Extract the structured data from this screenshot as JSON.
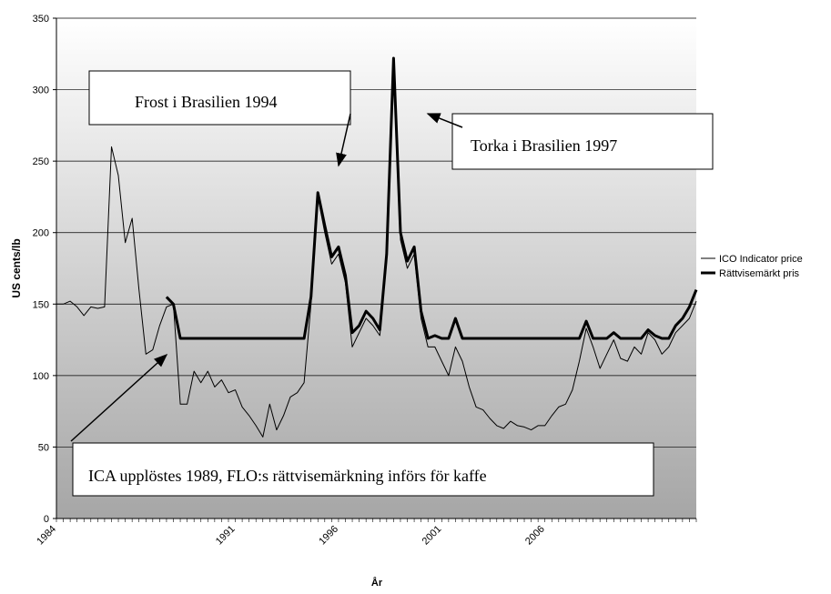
{
  "chart_data": {
    "type": "line",
    "ylabel": "US cents/lb",
    "xlabel": "År",
    "categories": [
      "1984",
      null,
      null,
      null,
      null,
      null,
      null,
      null,
      null,
      null,
      null,
      null,
      null,
      null,
      null,
      null,
      null,
      null,
      null,
      null,
      null,
      null,
      null,
      null,
      null,
      null,
      "1991",
      null,
      null,
      null,
      null,
      null,
      null,
      null,
      null,
      null,
      null,
      null,
      null,
      null,
      null,
      "1996",
      null,
      null,
      null,
      null,
      null,
      null,
      null,
      null,
      null,
      null,
      null,
      null,
      null,
      null,
      "2001",
      null,
      null,
      null,
      null,
      null,
      null,
      null,
      null,
      null,
      null,
      null,
      null,
      null,
      null,
      "2006",
      null,
      null,
      null,
      null,
      null,
      null,
      null,
      null,
      null,
      null,
      null,
      null,
      null,
      null,
      null,
      null,
      null,
      null,
      null,
      null,
      null,
      null
    ],
    "series": [
      {
        "name": "ICO Indicator price",
        "color": "#000000",
        "width": 1,
        "values": [
          150,
          150,
          152,
          148,
          142,
          148,
          147,
          148,
          260,
          240,
          193,
          210,
          160,
          115,
          118,
          135,
          148,
          150,
          80,
          80,
          103,
          95,
          103,
          92,
          97,
          88,
          90,
          78,
          72,
          65,
          57,
          80,
          62,
          72,
          85,
          88,
          95,
          150,
          225,
          200,
          178,
          185,
          165,
          120,
          130,
          140,
          135,
          128,
          180,
          320,
          195,
          175,
          185,
          140,
          120,
          120,
          110,
          100,
          120,
          110,
          92,
          78,
          76,
          70,
          65,
          63,
          68,
          65,
          64,
          62,
          65,
          65,
          72,
          78,
          80,
          90,
          110,
          133,
          120,
          105,
          115,
          125,
          112,
          110,
          120,
          115,
          130,
          125,
          115,
          120,
          130,
          135,
          140,
          152
        ]
      },
      {
        "name": "Rättvisemärkt pris",
        "color": "#000000",
        "width": 3,
        "values": [
          null,
          null,
          null,
          null,
          null,
          null,
          null,
          null,
          null,
          null,
          null,
          null,
          null,
          null,
          null,
          null,
          155,
          150,
          126,
          126,
          126,
          126,
          126,
          126,
          126,
          126,
          126,
          126,
          126,
          126,
          126,
          126,
          126,
          126,
          126,
          126,
          126,
          155,
          228,
          205,
          183,
          190,
          170,
          130,
          135,
          145,
          140,
          132,
          185,
          322,
          200,
          180,
          190,
          145,
          126,
          128,
          126,
          126,
          140,
          126,
          126,
          126,
          126,
          126,
          126,
          126,
          126,
          126,
          126,
          126,
          126,
          126,
          126,
          126,
          126,
          126,
          126,
          138,
          126,
          126,
          126,
          130,
          126,
          126,
          126,
          126,
          132,
          128,
          126,
          126,
          135,
          140,
          148,
          160
        ]
      }
    ],
    "ylim": [
      0,
      350
    ],
    "yticks": [
      0,
      50,
      100,
      150,
      200,
      250,
      300,
      350
    ],
    "grid": true,
    "legend": "right",
    "annotations": [
      "Frost i Brasilien 1994",
      "Torka i Brasilien 1997",
      "ICA upplöstes 1989, FLO:s rättvisemärkning införs för kaffe"
    ]
  }
}
